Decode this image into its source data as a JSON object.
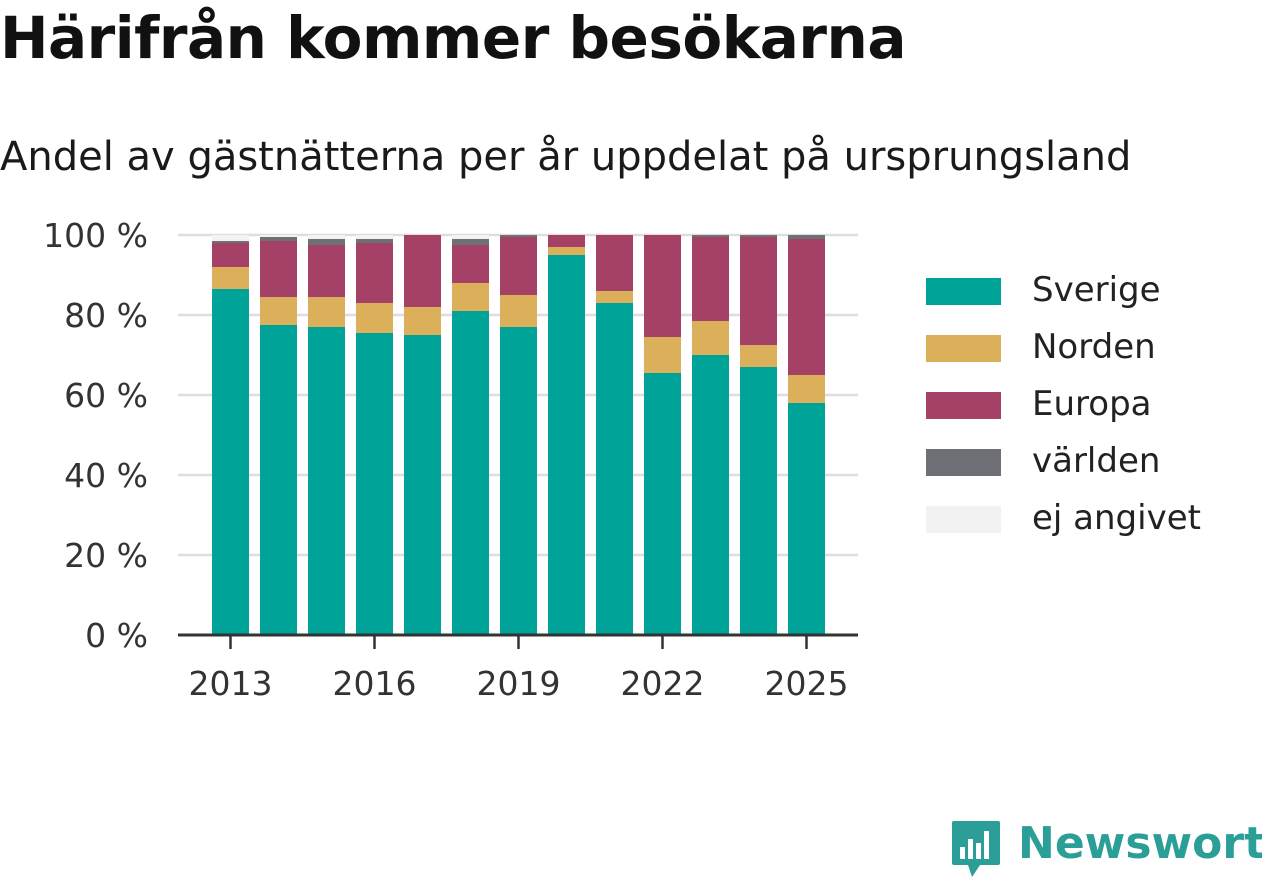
{
  "title": "Härifrån kommer besökarna",
  "subtitle": "Andel av gästnätterna per år uppdelat på ursprungsland",
  "logo_text": "Newsworthy",
  "logo_icon": "bar-chart-speech-bubble-icon",
  "colors": {
    "Sverige": "#00a398",
    "Norden": "#dcb05a",
    "Europa": "#a54167",
    "världen": "#6f6f76",
    "ej angivet": "#f2f2f2",
    "logo": "#2a9e97"
  },
  "chart_data": {
    "type": "bar",
    "stacked": true,
    "categories": [
      "2013",
      "2014",
      "2015",
      "2016",
      "2017",
      "2018",
      "2019",
      "2020",
      "2021",
      "2022",
      "2023",
      "2024",
      "2025"
    ],
    "x_tick_labels": [
      "2013",
      "2016",
      "2019",
      "2022",
      "2025"
    ],
    "y_tick_labels": [
      "0 %",
      "20 %",
      "40 %",
      "60 %",
      "80 %",
      "100 %"
    ],
    "ylim": [
      0,
      100
    ],
    "grid": true,
    "legend_position": "right",
    "series": [
      {
        "name": "Sverige",
        "values": [
          86.5,
          77.5,
          77,
          75.5,
          75,
          81,
          77,
          95,
          83,
          65.5,
          70,
          67,
          58
        ]
      },
      {
        "name": "Norden",
        "values": [
          5.5,
          7,
          7.5,
          7.5,
          7,
          7,
          8,
          2,
          3,
          9,
          8.5,
          5.5,
          7
        ]
      },
      {
        "name": "Europa",
        "values": [
          6,
          14,
          13,
          15,
          18,
          9.5,
          14.5,
          3,
          14,
          25.5,
          21,
          27,
          34
        ]
      },
      {
        "name": "världen",
        "values": [
          0.5,
          1,
          1.5,
          1,
          0,
          1.5,
          0.5,
          0,
          0,
          0,
          0.5,
          0.5,
          1
        ]
      },
      {
        "name": "ej angivet",
        "values": [
          1.5,
          0.5,
          1,
          1,
          0,
          1,
          0,
          0,
          0,
          0,
          0,
          0,
          0
        ]
      }
    ]
  }
}
